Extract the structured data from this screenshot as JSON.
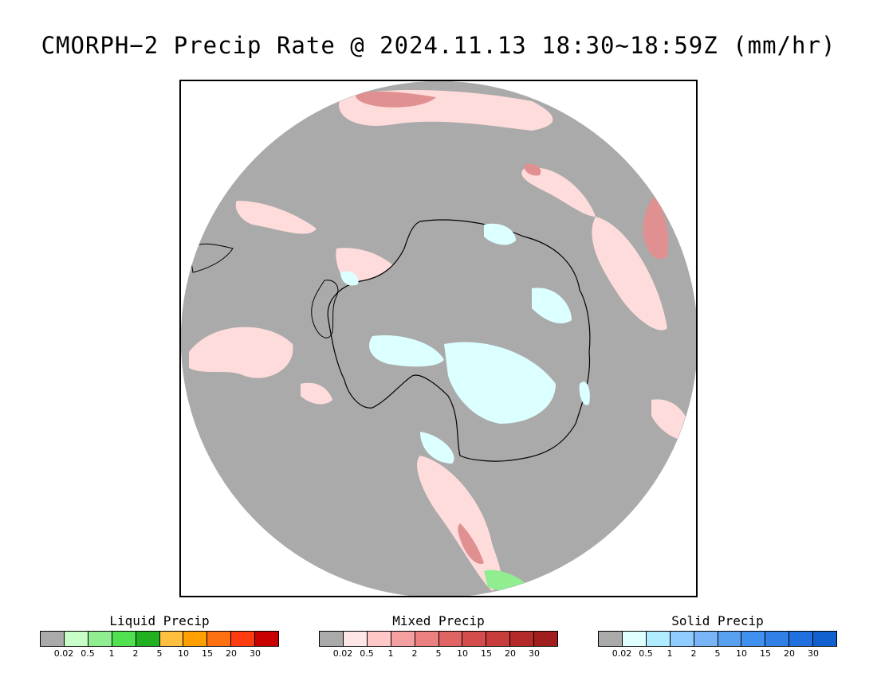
{
  "title": "CMORPH−2 Precip Rate @ 2024.11.13 18:30~18:59Z (mm/hr)",
  "map": {
    "projection": "south polar stereographic",
    "colors": {
      "no_precip": "#aaaaaa",
      "mixed_light": "#ffdcdc",
      "mixed_mid": "#f0a0a0",
      "mixed_heavy": "#e07070",
      "solid_light": "#dcffff",
      "liquid_light": "#90ee90",
      "coastline": "#000000",
      "outside": "#ffffff"
    }
  },
  "legends": [
    {
      "title": "Liquid Precip",
      "colors": [
        "#aaaaaa",
        "#c8ffc8",
        "#90ee90",
        "#50e050",
        "#20b020",
        "#ffc040",
        "#ffa000",
        "#ff7010",
        "#ff3c10",
        "#c80000"
      ],
      "ticks": [
        "0.02",
        "0.5",
        "1",
        "2",
        "5",
        "10",
        "15",
        "20",
        "30"
      ]
    },
    {
      "title": "Mixed Precip",
      "colors": [
        "#aaaaaa",
        "#ffe6e6",
        "#ffc8c8",
        "#f5a0a0",
        "#eb8080",
        "#e06464",
        "#d44c4c",
        "#c83c3c",
        "#b42a2a",
        "#a01e1e"
      ],
      "ticks": [
        "0.02",
        "0.5",
        "1",
        "2",
        "5",
        "10",
        "15",
        "20",
        "30"
      ]
    },
    {
      "title": "Solid Precip",
      "colors": [
        "#aaaaaa",
        "#e0ffff",
        "#b0ecff",
        "#90ccff",
        "#78b4f8",
        "#5aa0f0",
        "#4090f0",
        "#3080e8",
        "#2070e0",
        "#1060d0"
      ],
      "ticks": [
        "0.02",
        "0.5",
        "1",
        "2",
        "5",
        "10",
        "15",
        "20",
        "30"
      ]
    }
  ]
}
